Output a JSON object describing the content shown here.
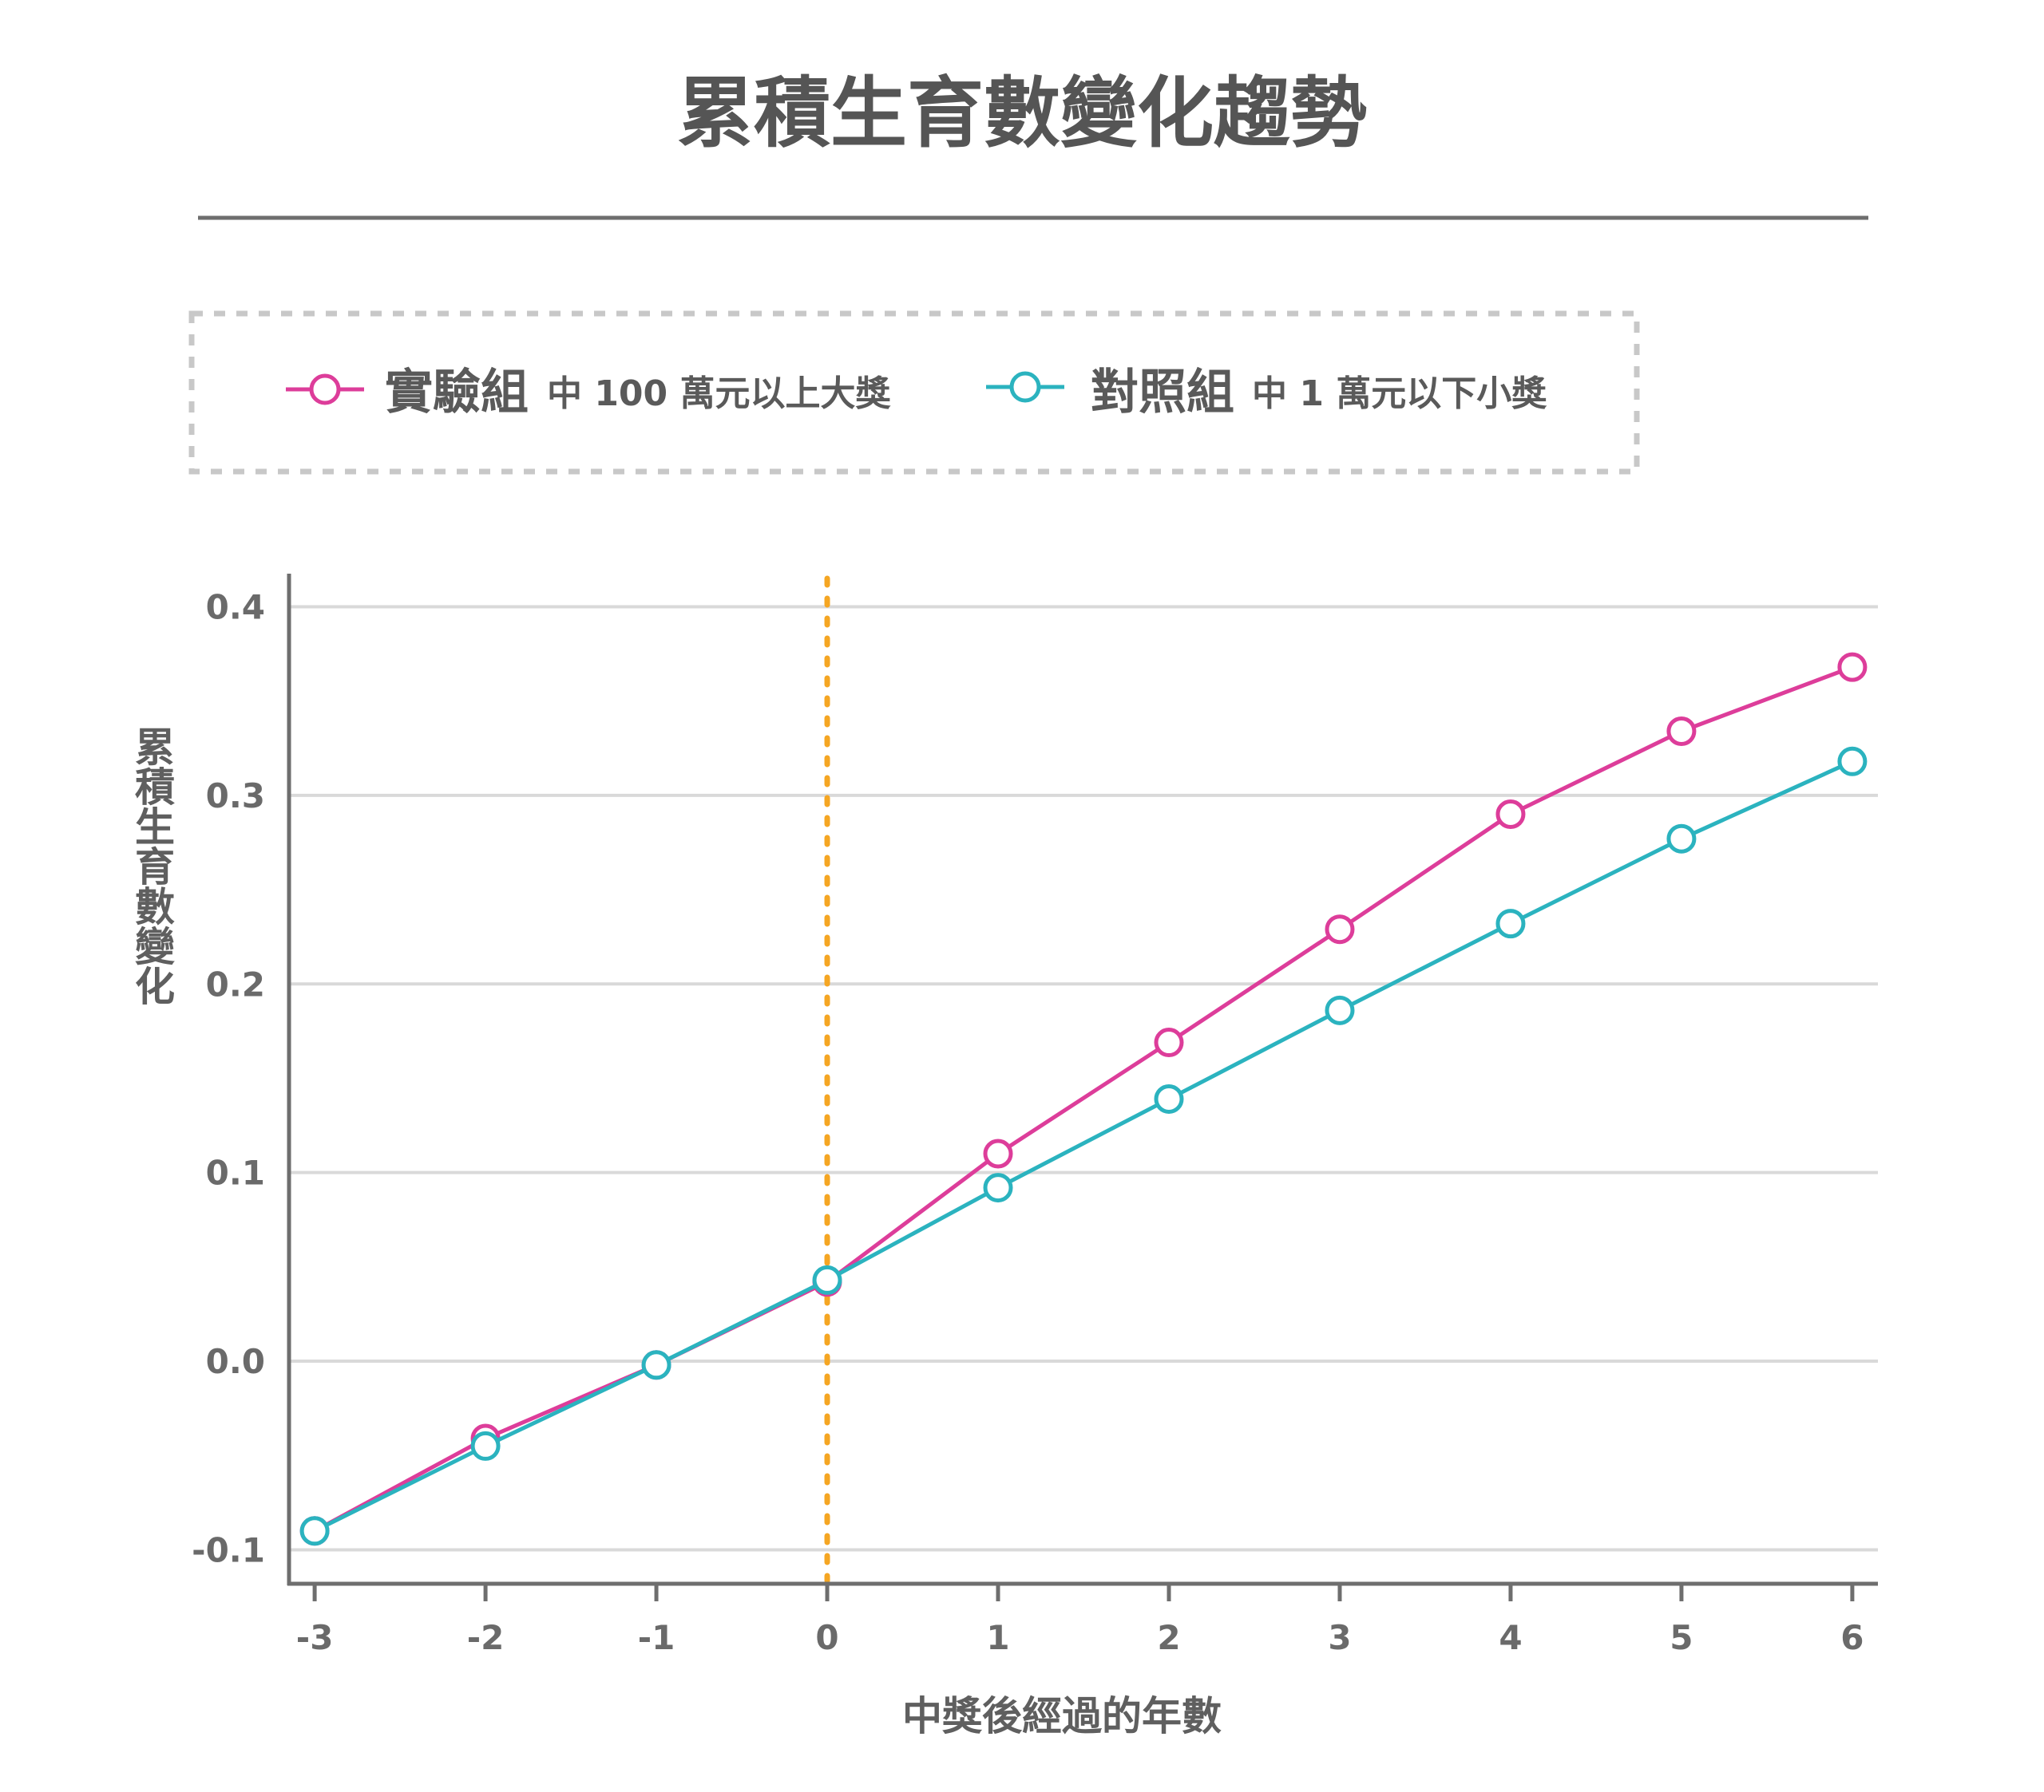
{
  "colors": {
    "experimental": "#dd3d9a",
    "control": "#2bb3bf",
    "event_line": "#f5a623",
    "text": "#5a5a5a",
    "grid": "#d9d9d9",
    "axis": "#6e6e6e"
  },
  "legend": {
    "items": [
      {
        "main": "實驗組",
        "sub": "中 100 萬元以上大獎",
        "color_key": "experimental"
      },
      {
        "main": "對照組",
        "sub": "中 1 萬元以下小獎",
        "color_key": "control"
      }
    ]
  },
  "chart_data": {
    "type": "line",
    "title": "累積生育數變化趨勢",
    "xlabel": "中獎後經過的年數",
    "ylabel": "累積生育數變化",
    "x": [
      -3,
      -2,
      -1,
      0,
      1,
      2,
      3,
      4,
      5,
      6
    ],
    "x_tick_labels": [
      "-3",
      "-2",
      "-1",
      "0",
      "1",
      "2",
      "3",
      "4",
      "5",
      "6"
    ],
    "y_ticks": [
      -0.1,
      0.0,
      0.1,
      0.2,
      0.3,
      0.4
    ],
    "y_tick_labels": [
      "-0.1",
      "0.0",
      "0.1",
      "0.2",
      "0.3",
      "0.4"
    ],
    "xlim": [
      -3.15,
      6.15
    ],
    "ylim": [
      -0.118,
      0.415
    ],
    "grid": true,
    "vertical_marker_x": 0,
    "legend_position": "top",
    "series": [
      {
        "name": "實驗組",
        "color_key": "experimental",
        "values": [
          -0.09,
          -0.041,
          -0.002,
          0.042,
          0.11,
          0.169,
          0.229,
          0.29,
          0.334,
          0.368
        ]
      },
      {
        "name": "對照組",
        "color_key": "control",
        "values": [
          -0.09,
          -0.045,
          -0.002,
          0.043,
          0.092,
          0.139,
          0.186,
          0.232,
          0.277,
          0.318
        ]
      }
    ]
  }
}
